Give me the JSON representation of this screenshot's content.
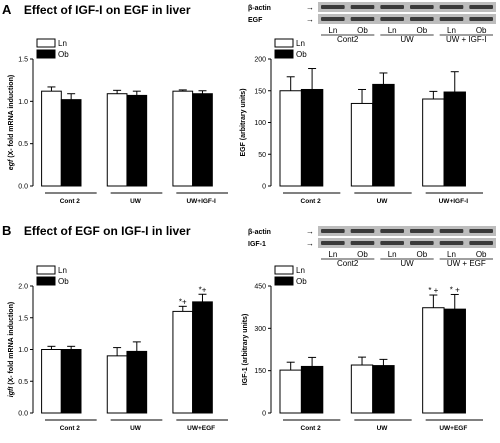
{
  "panels": {
    "A": {
      "letter": "A",
      "title": "Effect of IGF-I on EGF in liver"
    },
    "B": {
      "letter": "B",
      "title": "Effect of EGF on IGF-I in liver"
    }
  },
  "blots": [
    {
      "row1": "β-actin",
      "row2": "EGF",
      "lanes": [
        "Ln",
        "Ob",
        "Ln",
        "Ob",
        "Ln",
        "Ob"
      ],
      "groups": [
        "Cont2",
        "UW",
        "UW + IGF-I"
      ]
    },
    {
      "row1": "β-actin",
      "row2": "IGF-1",
      "lanes": [
        "Ln",
        "Ob",
        "Ln",
        "Ob",
        "Ln",
        "Ob"
      ],
      "groups": [
        "Cont2",
        "UW",
        "UW + EGF"
      ]
    }
  ],
  "colors": {
    "ln": "#ffffff",
    "ob": "#000000",
    "blot_bg": "#bdbdbd",
    "band": "#3a3a3a"
  },
  "chart_data": [
    {
      "type": "bar",
      "ylabel_italic": "egf",
      "ylabel_rest": " (X- fold mRNA induction)",
      "categories": [
        "Cont 2",
        "UW",
        "UW+IGF-I"
      ],
      "series": [
        {
          "name": "Ln",
          "values": [
            1.12,
            1.09,
            1.12
          ],
          "errors": [
            0.05,
            0.04,
            0.015
          ]
        },
        {
          "name": "Ob",
          "values": [
            1.02,
            1.07,
            1.09
          ],
          "errors": [
            0.07,
            0.05,
            0.035
          ]
        }
      ],
      "ylim": [
        0,
        1.5
      ],
      "yticks": [
        "0.0",
        "0.5",
        "1.0",
        "1.5"
      ],
      "yticks_values": [
        0,
        0.5,
        1.0,
        1.5
      ],
      "legend": "top-left",
      "annotations": []
    },
    {
      "type": "bar",
      "ylabel_italic": "",
      "ylabel_rest": "EGF (arbitrary units)",
      "categories": [
        "Cont 2",
        "UW",
        "UW+IGF-I"
      ],
      "series": [
        {
          "name": "Ln",
          "values": [
            150,
            130,
            137
          ],
          "errors": [
            22,
            22,
            12
          ]
        },
        {
          "name": "Ob",
          "values": [
            152,
            160,
            148
          ],
          "errors": [
            33,
            18,
            32
          ]
        }
      ],
      "ylim": [
        0,
        200
      ],
      "yticks": [
        "0",
        "50",
        "100",
        "150",
        "200"
      ],
      "yticks_values": [
        0,
        50,
        100,
        150,
        200
      ],
      "legend": "top-left",
      "annotations": []
    },
    {
      "type": "bar",
      "ylabel_italic": "igfI",
      "ylabel_rest": " (X- fold mRNA induction)",
      "categories": [
        "Cont 2",
        "UW",
        "UW+EGF"
      ],
      "series": [
        {
          "name": "Ln",
          "values": [
            1.0,
            0.9,
            1.6
          ],
          "errors": [
            0.05,
            0.13,
            0.08
          ]
        },
        {
          "name": "Ob",
          "values": [
            1.0,
            0.97,
            1.75
          ],
          "errors": [
            0.05,
            0.15,
            0.12
          ]
        }
      ],
      "ylim": [
        0,
        2.0
      ],
      "yticks": [
        "0.0",
        "0.5",
        "1.0",
        "1.5",
        "2.0"
      ],
      "yticks_values": [
        0,
        0.5,
        1.0,
        1.5,
        2.0
      ],
      "legend": "top-left",
      "annotations": [
        {
          "series": 0,
          "category": 2,
          "text": "*+"
        },
        {
          "series": 1,
          "category": 2,
          "text": "*+"
        }
      ]
    },
    {
      "type": "bar",
      "ylabel_italic": "",
      "ylabel_rest": "IGF-1 (arbitrary units)",
      "categories": [
        "Cont 2",
        "UW",
        "UW+EGF"
      ],
      "series": [
        {
          "name": "Ln",
          "values": [
            152,
            170,
            373
          ],
          "errors": [
            28,
            28,
            45
          ]
        },
        {
          "name": "Ob",
          "values": [
            165,
            168,
            368
          ],
          "errors": [
            32,
            22,
            52
          ]
        }
      ],
      "ylim": [
        0,
        450
      ],
      "yticks": [
        "0",
        "150",
        "300",
        "450"
      ],
      "yticks_values": [
        0,
        150,
        300,
        450
      ],
      "legend": "top-left",
      "annotations": [
        {
          "series": 0,
          "category": 2,
          "text": "* +"
        },
        {
          "series": 1,
          "category": 2,
          "text": "* +"
        }
      ]
    }
  ]
}
